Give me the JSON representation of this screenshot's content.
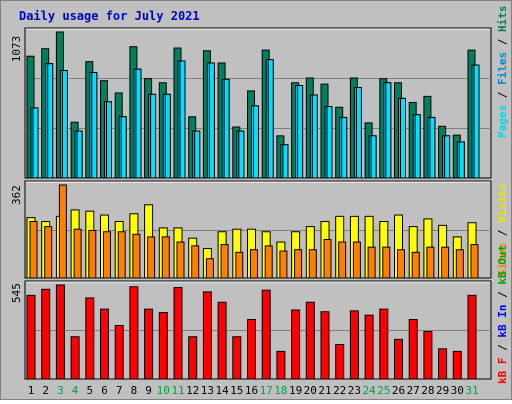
{
  "colors": {
    "background": "#c0c0c0",
    "title": "#0000cc",
    "hits": "#007f5f",
    "files": "#00c8ff",
    "pages": "#00e0ff",
    "visits": "#ffff00",
    "sites": "#ff8000",
    "kbytes": "#ff0000",
    "kb_in": "#0000ff",
    "kb_out": "#00a000",
    "weekend_day": "#00a040",
    "weekday": "#000000"
  },
  "chart_data": [
    {
      "type": "bar",
      "title": "Daily usage for July 2021",
      "categories": [
        "1",
        "2",
        "3",
        "4",
        "5",
        "6",
        "7",
        "8",
        "9",
        "10",
        "11",
        "12",
        "13",
        "14",
        "15",
        "16",
        "17",
        "18",
        "19",
        "20",
        "21",
        "22",
        "23",
        "24",
        "25",
        "26",
        "27",
        "28",
        "29",
        "30",
        "31"
      ],
      "weekend_days": [
        "3",
        "4",
        "10",
        "11",
        "17",
        "18",
        "24",
        "25",
        "31"
      ],
      "y_max_label": "1073",
      "ylim": [
        0,
        1073
      ],
      "series": [
        {
          "name": "Hits",
          "values": [
            895,
            950,
            1073,
            410,
            855,
            715,
            625,
            965,
            730,
            700,
            955,
            450,
            935,
            845,
            375,
            640,
            940,
            310,
            700,
            735,
            690,
            520,
            735,
            405,
            730,
            700,
            555,
            600,
            380,
            315,
            940
          ]
        },
        {
          "name": "Files",
          "values": [
            515,
            840,
            790,
            345,
            775,
            560,
            450,
            800,
            615,
            615,
            860,
            345,
            845,
            725,
            345,
            530,
            870,
            245,
            680,
            610,
            525,
            445,
            665,
            310,
            700,
            585,
            465,
            445,
            310,
            265,
            830
          ]
        },
        {
          "name": "Pages",
          "values": [
            515,
            840,
            790,
            345,
            775,
            560,
            450,
            800,
            615,
            615,
            860,
            345,
            845,
            725,
            345,
            530,
            870,
            245,
            680,
            610,
            525,
            445,
            665,
            310,
            700,
            585,
            465,
            445,
            310,
            265,
            830
          ]
        }
      ],
      "legend": [
        "Hits",
        "Files",
        "Pages"
      ]
    },
    {
      "type": "bar",
      "categories": [
        "1",
        "2",
        "3",
        "4",
        "5",
        "6",
        "7",
        "8",
        "9",
        "10",
        "11",
        "12",
        "13",
        "14",
        "15",
        "16",
        "17",
        "18",
        "19",
        "20",
        "21",
        "22",
        "23",
        "24",
        "25",
        "26",
        "27",
        "28",
        "29",
        "30",
        "31"
      ],
      "y_max_label": "362",
      "ylim": [
        0,
        362
      ],
      "series": [
        {
          "name": "Visits",
          "values": [
            235,
            220,
            240,
            265,
            260,
            245,
            220,
            250,
            285,
            195,
            195,
            155,
            115,
            180,
            190,
            190,
            180,
            140,
            180,
            200,
            220,
            240,
            240,
            240,
            220,
            245,
            200,
            230,
            205,
            160,
            215
          ]
        },
        {
          "name": "Sites",
          "values": [
            220,
            200,
            362,
            190,
            185,
            180,
            180,
            170,
            160,
            160,
            140,
            125,
            75,
            130,
            100,
            110,
            125,
            105,
            110,
            110,
            150,
            140,
            140,
            120,
            120,
            110,
            100,
            120,
            120,
            110,
            130
          ]
        }
      ],
      "legend": [
        "Visits",
        "Sites"
      ]
    },
    {
      "type": "bar",
      "categories": [
        "1",
        "2",
        "3",
        "4",
        "5",
        "6",
        "7",
        "8",
        "9",
        "10",
        "11",
        "12",
        "13",
        "14",
        "15",
        "16",
        "17",
        "18",
        "19",
        "20",
        "21",
        "22",
        "23",
        "24",
        "25",
        "26",
        "27",
        "28",
        "29",
        "30",
        "31"
      ],
      "y_max_label": "545",
      "ylim": [
        0,
        545
      ],
      "series": [
        {
          "name": "KBytes",
          "values": [
            485,
            520,
            545,
            245,
            470,
            405,
            310,
            535,
            405,
            385,
            530,
            245,
            505,
            445,
            245,
            345,
            515,
            160,
            400,
            445,
            390,
            200,
            395,
            370,
            405,
            230,
            345,
            275,
            175,
            160,
            485
          ]
        }
      ],
      "legend": [
        "kB F",
        "kB In",
        "kB Out"
      ]
    }
  ],
  "legend_text": {
    "top": {
      "pages": "Pages",
      "sep1": " / ",
      "files": "Files",
      "sep2": " / ",
      "hits": "Hits"
    },
    "middle": {
      "sites": "Sites",
      "sep": " / ",
      "visits": "Visits"
    },
    "bottom": {
      "kbf": "kB F",
      "sep1": " / ",
      "kbin": "kB In",
      "sep2": " / ",
      "kbout": "kB Out"
    }
  }
}
